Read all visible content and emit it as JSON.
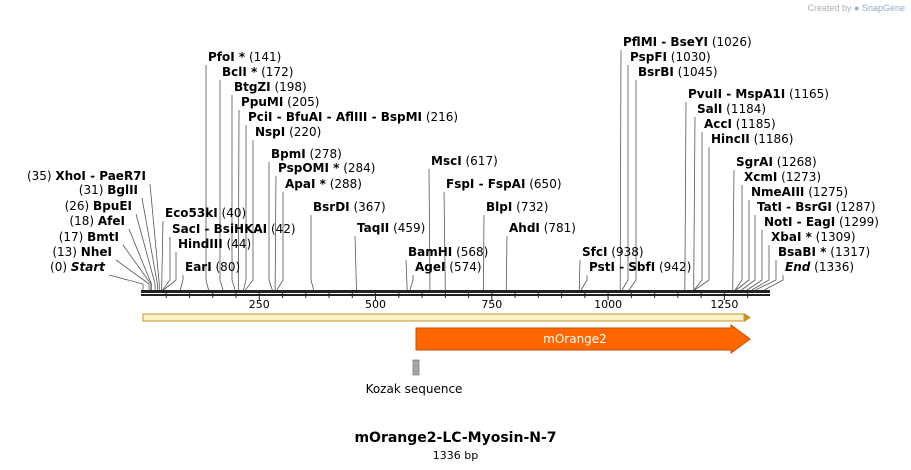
{
  "credit": {
    "created_by": "Created by",
    "brand": "SnapGene"
  },
  "map": {
    "name": "mOrange2-LC-Myosin-N-7",
    "length_label": "1336 bp",
    "length": 1336,
    "ticks": [
      250,
      500,
      750,
      1000,
      1250
    ],
    "feature_label": "mOrange2",
    "primer_label": "Kozak sequence",
    "colors": {
      "feature": "#ff6600",
      "feature_edge": "#c44e00",
      "bar_fill": "#fdf3c7",
      "bar_edge": "#c8912a",
      "primer": "#a8a8a8"
    }
  },
  "sites": [
    {
      "name": "Start",
      "pos": 0,
      "num": "(0)",
      "italic": true,
      "side": "left"
    },
    {
      "name": "NheI",
      "pos": 13,
      "num": "(13)",
      "side": "left"
    },
    {
      "name": "BmtI",
      "pos": 17,
      "num": "(17)",
      "side": "left"
    },
    {
      "name": "AfeI",
      "pos": 18,
      "num": "(18)",
      "side": "left"
    },
    {
      "name": "BpuEI",
      "pos": 26,
      "num": "(26)",
      "side": "left"
    },
    {
      "name": "BglII",
      "pos": 31,
      "num": "(31)",
      "side": "left"
    },
    {
      "name": "XhoI  - PaeR7I",
      "pos": 35,
      "num": "(35)",
      "side": "left"
    },
    {
      "name": "EarI",
      "pos": 80,
      "num": "(80)",
      "side": "right"
    },
    {
      "name": "HindIII",
      "pos": 44,
      "num": "(44)",
      "side": "right"
    },
    {
      "name": "SacI  - BsiHKAI",
      "pos": 42,
      "num": "(42)",
      "side": "right"
    },
    {
      "name": "Eco53kI",
      "pos": 40,
      "num": "(40)",
      "side": "right"
    },
    {
      "name": "PfoI *",
      "pos": 141,
      "num": "(141)",
      "side": "right"
    },
    {
      "name": "BclI *",
      "pos": 172,
      "num": "(172)",
      "side": "right"
    },
    {
      "name": "BtgZI",
      "pos": 198,
      "num": "(198)",
      "side": "right"
    },
    {
      "name": "PpuMI",
      "pos": 205,
      "num": "(205)",
      "side": "right"
    },
    {
      "name": "PciI  - BfuAI  - AflIII  - BspMI",
      "pos": 216,
      "num": "(216)",
      "side": "right"
    },
    {
      "name": "NspI",
      "pos": 220,
      "num": "(220)",
      "side": "right"
    },
    {
      "name": "BpmI",
      "pos": 278,
      "num": "(278)",
      "side": "right"
    },
    {
      "name": "PspOMI *",
      "pos": 284,
      "num": "(284)",
      "side": "right"
    },
    {
      "name": "ApaI *",
      "pos": 288,
      "num": "(288)",
      "side": "right"
    },
    {
      "name": "BsrDI",
      "pos": 367,
      "num": "(367)",
      "side": "right"
    },
    {
      "name": "TaqII",
      "pos": 459,
      "num": "(459)",
      "side": "right"
    },
    {
      "name": "BamHI",
      "pos": 568,
      "num": "(568)",
      "side": "right"
    },
    {
      "name": "AgeI",
      "pos": 574,
      "num": "(574)",
      "side": "right"
    },
    {
      "name": "MscI",
      "pos": 617,
      "num": "(617)",
      "side": "right"
    },
    {
      "name": "FspI  - FspAI",
      "pos": 650,
      "num": "(650)",
      "side": "right"
    },
    {
      "name": "BlpI",
      "pos": 732,
      "num": "(732)",
      "side": "right"
    },
    {
      "name": "AhdI",
      "pos": 781,
      "num": "(781)",
      "side": "right"
    },
    {
      "name": "SfcI",
      "pos": 938,
      "num": "(938)",
      "side": "right"
    },
    {
      "name": "PstI  - SbfI",
      "pos": 942,
      "num": "(942)",
      "side": "right"
    },
    {
      "name": "PflMI  - BseYI",
      "pos": 1026,
      "num": "(1026)",
      "side": "right"
    },
    {
      "name": "PspFI",
      "pos": 1030,
      "num": "(1030)",
      "side": "right"
    },
    {
      "name": "BsrBI",
      "pos": 1045,
      "num": "(1045)",
      "side": "right"
    },
    {
      "name": "PvuII  - MspA1I",
      "pos": 1165,
      "num": "(1165)",
      "side": "right"
    },
    {
      "name": "SalI",
      "pos": 1184,
      "num": "(1184)",
      "side": "right"
    },
    {
      "name": "AccI",
      "pos": 1185,
      "num": "(1185)",
      "side": "right"
    },
    {
      "name": "HincII",
      "pos": 1186,
      "num": "(1186)",
      "side": "right"
    },
    {
      "name": "SgrAI",
      "pos": 1268,
      "num": "(1268)",
      "side": "right"
    },
    {
      "name": "XcmI",
      "pos": 1273,
      "num": "(1273)",
      "side": "right"
    },
    {
      "name": "NmeAIII",
      "pos": 1275,
      "num": "(1275)",
      "side": "right"
    },
    {
      "name": "TatI  - BsrGI",
      "pos": 1287,
      "num": "(1287)",
      "side": "right"
    },
    {
      "name": "NotI  - EagI",
      "pos": 1299,
      "num": "(1299)",
      "side": "right"
    },
    {
      "name": "XbaI *",
      "pos": 1309,
      "num": "(1309)",
      "side": "right"
    },
    {
      "name": "BsaBI *",
      "pos": 1317,
      "num": "(1317)",
      "side": "right"
    },
    {
      "name": "End",
      "pos": 1336,
      "num": "(1336)",
      "italic": true,
      "side": "right"
    }
  ]
}
